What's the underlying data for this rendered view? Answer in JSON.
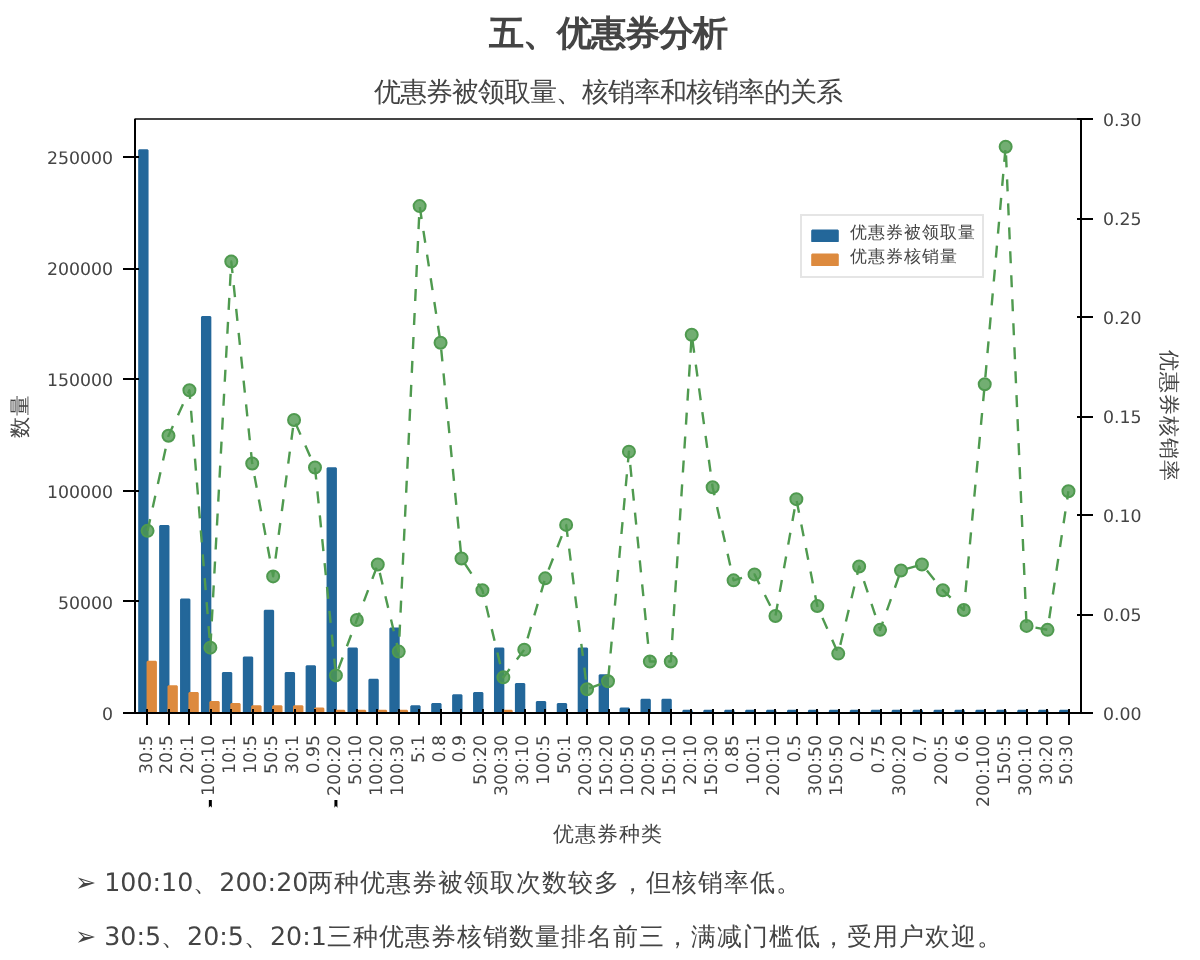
{
  "chart_data": {
    "type": "bar",
    "title": "五、优惠券分析",
    "subtitle": "优惠券被领取量、核销率和核销率的关系",
    "xlabel": "优惠券种类",
    "ylabel": "数量",
    "y2label": "优惠券核销率",
    "categories": [
      "30:5",
      "20:5",
      "20:1",
      "100:10",
      "10:1",
      "10:5",
      "50:5",
      "30:1",
      "0.95",
      "200:20",
      "50:10",
      "100:20",
      "100:30",
      "5:1",
      "0.8",
      "0.9",
      "50:20",
      "300:30",
      "30:10",
      "100:5",
      "50:1",
      "200:30",
      "150:20",
      "100:50",
      "200:50",
      "150:10",
      "20:10",
      "150:30",
      "0.85",
      "100:1",
      "200:10",
      "0.5",
      "300:50",
      "150:50",
      "0.2",
      "0.75",
      "300:20",
      "0.7",
      "200:5",
      "0.6",
      "200:100",
      "150:5",
      "300:10",
      "30:20",
      "50:30"
    ],
    "series": [
      {
        "name": "优惠券被领取量",
        "color": "#23679a",
        "values": [
          253000,
          84000,
          51000,
          178000,
          18000,
          25000,
          46000,
          18000,
          21000,
          110000,
          29000,
          15000,
          38000,
          3000,
          4000,
          8000,
          9000,
          29000,
          13000,
          5000,
          4000,
          29000,
          17000,
          2000,
          6000,
          6000,
          1000,
          1000,
          1000,
          1000,
          1000,
          1000,
          1000,
          1000,
          1000,
          1000,
          1000,
          1000,
          1000,
          1000,
          1000,
          1000,
          1000,
          1000,
          1000
        ]
      },
      {
        "name": "优惠券核销量",
        "color": "#dd8a3e",
        "values": [
          23000,
          12000,
          9000,
          5000,
          4000,
          3000,
          3000,
          3000,
          2000,
          1000,
          1000,
          1000,
          1000,
          0,
          0,
          0,
          0,
          1000,
          0,
          0,
          0,
          0,
          0,
          0,
          0,
          0,
          0,
          0,
          0,
          0,
          0,
          0,
          0,
          0,
          0,
          0,
          0,
          0,
          0,
          0,
          0,
          0,
          0,
          0,
          0
        ]
      },
      {
        "type": "line",
        "axis": "y2",
        "color": "#4f9a4f",
        "marker": "circle",
        "line_style": "dashed",
        "values": [
          0.092,
          0.14,
          0.163,
          0.033,
          0.228,
          0.126,
          0.069,
          0.148,
          0.124,
          0.019,
          0.047,
          0.075,
          0.031,
          0.256,
          0.187,
          0.078,
          0.062,
          0.018,
          0.032,
          0.068,
          0.095,
          0.012,
          0.016,
          0.132,
          0.026,
          0.026,
          0.191,
          0.114,
          0.067,
          0.07,
          0.049,
          0.108,
          0.054,
          0.03,
          0.074,
          0.042,
          0.072,
          0.075,
          0.062,
          0.052,
          0.166,
          0.286,
          0.044,
          0.042,
          0.112
        ]
      }
    ],
    "ylim": [
      0,
      267000
    ],
    "yticks": [
      0,
      50000,
      100000,
      150000,
      200000,
      250000
    ],
    "y2lim": [
      0,
      0.3
    ],
    "y2ticks": [
      {
        "value": 0,
        "label": "0.00"
      },
      {
        "value": 0.05,
        "label": "0.05"
      },
      {
        "value": 0.1,
        "label": "0.10"
      },
      {
        "value": 0.15,
        "label": "0.15"
      },
      {
        "value": 0.2,
        "label": "0.20"
      },
      {
        "value": 0.25,
        "label": "0.25"
      },
      {
        "value": 0.3,
        "label": "0.30"
      }
    ],
    "grid": false,
    "legend": "top right",
    "annotations": [
      "➢ 100:10、200:20两种优惠券被领取次数较多，但核销率低。",
      "➢ 30:5、20:5、20:1三种优惠券核销数量排名前三，满减门槛低，受用户欢迎。"
    ]
  }
}
